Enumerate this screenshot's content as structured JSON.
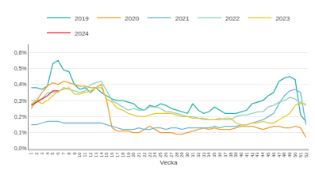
{
  "chart_data": {
    "type": "line",
    "xlabel": "Vecka",
    "x": [
      1,
      2,
      3,
      4,
      5,
      6,
      7,
      8,
      9,
      10,
      11,
      12,
      13,
      14,
      15,
      16,
      17,
      18,
      19,
      20,
      21,
      22,
      23,
      24,
      25,
      26,
      27,
      28,
      29,
      30,
      31,
      32,
      33,
      34,
      35,
      36,
      37,
      38,
      39,
      40,
      41,
      42,
      43,
      44,
      45,
      46,
      47,
      48,
      49,
      50,
      51,
      52
    ],
    "series": [
      {
        "name": "2019",
        "color": "#2ab5a8",
        "values": [
          0.38,
          0.38,
          0.37,
          0.39,
          0.53,
          0.55,
          0.49,
          0.48,
          0.4,
          0.37,
          0.38,
          0.35,
          0.38,
          0.35,
          0.33,
          0.31,
          0.3,
          0.3,
          0.29,
          0.28,
          0.25,
          0.24,
          0.27,
          0.26,
          0.28,
          0.27,
          0.25,
          0.24,
          0.23,
          0.22,
          0.28,
          0.24,
          0.22,
          0.23,
          0.26,
          0.24,
          0.22,
          0.22,
          0.22,
          0.23,
          0.24,
          0.28,
          0.29,
          0.3,
          0.33,
          0.35,
          0.42,
          0.44,
          0.45,
          0.43,
          0.21,
          0.17
        ]
      },
      {
        "name": "2020",
        "color": "#f0a030",
        "values": [
          0.25,
          0.3,
          0.35,
          0.39,
          0.41,
          0.4,
          0.42,
          0.41,
          0.4,
          0.39,
          0.39,
          0.38,
          0.38,
          0.4,
          0.3,
          0.13,
          0.11,
          0.11,
          0.11,
          0.1,
          0.1,
          0.12,
          0.14,
          0.12,
          0.1,
          0.1,
          0.1,
          0.09,
          0.09,
          0.1,
          0.11,
          0.12,
          0.13,
          0.12,
          0.13,
          0.12,
          0.12,
          0.12,
          0.13,
          0.14,
          0.14,
          0.14,
          0.13,
          0.12,
          0.13,
          0.14,
          0.14,
          0.13,
          0.13,
          0.14,
          0.13,
          0.07
        ]
      },
      {
        "name": "2021",
        "color": "#70b8d8",
        "values": [
          0.15,
          0.15,
          0.16,
          0.17,
          0.17,
          0.17,
          0.16,
          0.16,
          0.16,
          0.16,
          0.16,
          0.16,
          0.16,
          0.16,
          0.15,
          0.14,
          0.13,
          0.12,
          0.12,
          0.12,
          0.13,
          0.12,
          0.12,
          0.13,
          0.13,
          0.12,
          0.13,
          0.13,
          0.12,
          0.13,
          0.13,
          0.13,
          0.13,
          0.13,
          0.14,
          0.13,
          0.14,
          0.14,
          0.14,
          0.15,
          0.15,
          0.16,
          0.17,
          0.18,
          0.2,
          0.22,
          0.28,
          0.33,
          0.36,
          0.37,
          0.35,
          0.15
        ]
      },
      {
        "name": "2022",
        "color": "#90d4c0",
        "values": [
          0.28,
          0.3,
          0.31,
          0.35,
          0.35,
          0.35,
          0.38,
          0.37,
          0.36,
          0.35,
          0.36,
          0.4,
          0.41,
          0.42,
          0.36,
          0.3,
          0.28,
          0.26,
          0.24,
          0.25,
          0.24,
          0.24,
          0.26,
          0.26,
          0.25,
          0.23,
          0.23,
          0.22,
          0.21,
          0.2,
          0.2,
          0.19,
          0.19,
          0.18,
          0.18,
          0.19,
          0.18,
          0.18,
          0.2,
          0.21,
          0.21,
          0.22,
          0.23,
          0.23,
          0.26,
          0.27,
          0.29,
          0.3,
          0.32,
          0.31,
          0.28,
          0.28
        ]
      },
      {
        "name": "2023",
        "color": "#e8c830",
        "values": [
          0.3,
          0.3,
          0.28,
          0.3,
          0.33,
          0.36,
          0.37,
          0.38,
          0.34,
          0.34,
          0.35,
          0.36,
          0.38,
          0.38,
          0.31,
          0.29,
          0.25,
          0.24,
          0.22,
          0.21,
          0.2,
          0.2,
          0.21,
          0.22,
          0.22,
          0.22,
          0.22,
          0.21,
          0.2,
          0.2,
          0.19,
          0.19,
          0.18,
          0.18,
          0.18,
          0.18,
          0.19,
          0.19,
          0.16,
          0.15,
          0.15,
          0.16,
          0.16,
          0.17,
          0.16,
          0.16,
          0.18,
          0.2,
          0.22,
          0.27,
          0.29,
          0.27
        ]
      },
      {
        "name": "2024",
        "color": "#e03030",
        "values": [
          0.27,
          0.29,
          0.31,
          0.33,
          0.36,
          0.36,
          null,
          null,
          null,
          null,
          null,
          null,
          null,
          null,
          null,
          null,
          null,
          null,
          null,
          null,
          null,
          null,
          null,
          null,
          null,
          null,
          null,
          null,
          null,
          null,
          null,
          null,
          null,
          null,
          null,
          null,
          null,
          null,
          null,
          null,
          null,
          null,
          null,
          null,
          null,
          null,
          null,
          null,
          null,
          null,
          null,
          null
        ]
      }
    ],
    "xlim": [
      0.5,
      52.5
    ],
    "xticks": [
      1,
      2,
      3,
      4,
      5,
      6,
      7,
      8,
      9,
      10,
      11,
      12,
      13,
      14,
      15,
      16,
      17,
      18,
      19,
      20,
      21,
      22,
      23,
      24,
      25,
      26,
      27,
      28,
      29,
      30,
      31,
      32,
      33,
      34,
      35,
      36,
      37,
      38,
      39,
      40,
      41,
      42,
      43,
      44,
      45,
      46,
      47,
      48,
      49,
      50,
      51,
      52
    ],
    "ylim": [
      -0.005,
      0.65
    ],
    "yticks": [
      {
        "value": 0.0,
        "label": "0,0%"
      },
      {
        "value": 0.1,
        "label": "0,1%"
      },
      {
        "value": 0.2,
        "label": "0,2%"
      },
      {
        "value": 0.3,
        "label": "0,3%"
      },
      {
        "value": 0.4,
        "label": "0,4%"
      },
      {
        "value": 0.5,
        "label": "0,5%"
      },
      {
        "value": 0.6,
        "label": "0,6%"
      }
    ],
    "grid": true,
    "legend": "top"
  }
}
